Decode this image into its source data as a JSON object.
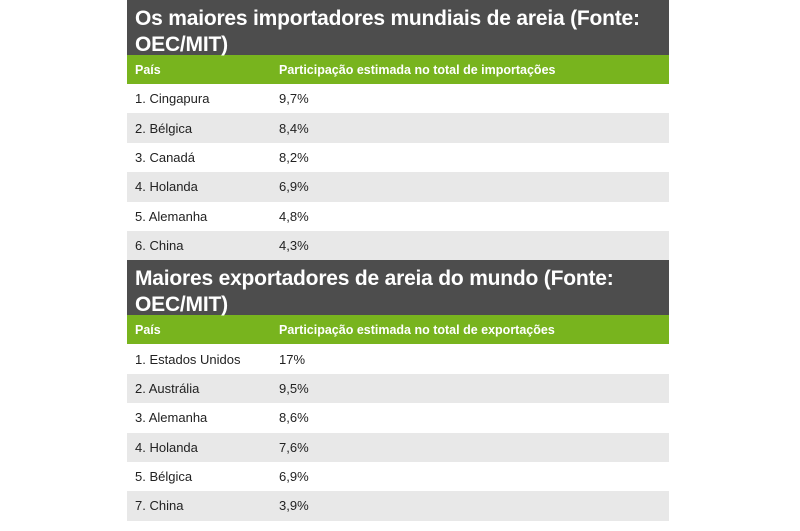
{
  "imports": {
    "title": "Os maiores importadores mundiais de areia (Fonte: OEC/MIT)",
    "headers": [
      "País",
      "Participação estimada no total de importações"
    ],
    "rows": [
      {
        "country": "1. Cingapura",
        "share": "9,7%"
      },
      {
        "country": "2. Bélgica",
        "share": "8,4%"
      },
      {
        "country": "3. Canadá",
        "share": "8,2%"
      },
      {
        "country": "4. Holanda",
        "share": "6,9%"
      },
      {
        "country": "5. Alemanha",
        "share": "4,8%"
      },
      {
        "country": "6. China",
        "share": "4,3%"
      }
    ]
  },
  "exports": {
    "title": "Maiores exportadores de areia do mundo (Fonte: OEC/MIT)",
    "headers": [
      "País",
      "Participação estimada no total de exportações"
    ],
    "rows": [
      {
        "country": "1. Estados Unidos",
        "share": "17%"
      },
      {
        "country": "2. Austrália",
        "share": "9,5%"
      },
      {
        "country": "3. Alemanha",
        "share": "8,6%"
      },
      {
        "country": "4. Holanda",
        "share": "7,6%"
      },
      {
        "country": "5. Bélgica",
        "share": "6,9%"
      },
      {
        "country": "7. China",
        "share": "3,9%"
      }
    ]
  },
  "colors": {
    "title_bg": "#4d4d4d",
    "header_bg": "#78b41e",
    "stripe_bg": "#e8e8e8"
  }
}
